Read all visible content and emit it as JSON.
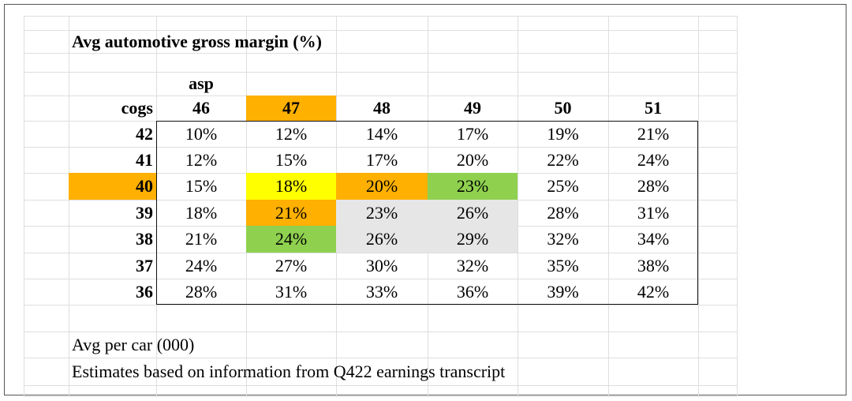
{
  "sheet": {
    "title": "Avg automotive gross margin (%)",
    "asp_label": "asp",
    "cogs_label": "cogs",
    "asp_headers": [
      "46",
      "47",
      "48",
      "49",
      "50",
      "51"
    ],
    "cogs_headers": [
      "42",
      "41",
      "40",
      "39",
      "38",
      "37",
      "36"
    ],
    "rows": [
      [
        "10%",
        "12%",
        "14%",
        "17%",
        "19%",
        "21%"
      ],
      [
        "12%",
        "15%",
        "17%",
        "20%",
        "22%",
        "24%"
      ],
      [
        "15%",
        "18%",
        "20%",
        "23%",
        "25%",
        "28%"
      ],
      [
        "18%",
        "21%",
        "23%",
        "26%",
        "28%",
        "31%"
      ],
      [
        "21%",
        "24%",
        "26%",
        "29%",
        "32%",
        "34%"
      ],
      [
        "24%",
        "27%",
        "30%",
        "32%",
        "35%",
        "38%"
      ],
      [
        "28%",
        "31%",
        "33%",
        "36%",
        "39%",
        "42%"
      ]
    ],
    "notes": [
      "Avg per car (000)",
      "Estimates based on information from Q422 earnings transcript"
    ],
    "highlights": {
      "asp_header": {
        "col": 1,
        "color": "#ffb000"
      },
      "cogs_header": {
        "row": 2,
        "color": "#ffb000"
      },
      "cells": [
        {
          "row": 2,
          "col": 1,
          "color": "#ffff00"
        },
        {
          "row": 2,
          "col": 2,
          "color": "#ffb000"
        },
        {
          "row": 2,
          "col": 3,
          "color": "#8fd14f"
        },
        {
          "row": 3,
          "col": 1,
          "color": "#ffb000"
        },
        {
          "row": 3,
          "col": 2,
          "color": "#e6e6e6"
        },
        {
          "row": 3,
          "col": 3,
          "color": "#e6e6e6"
        },
        {
          "row": 4,
          "col": 1,
          "color": "#8fd14f"
        },
        {
          "row": 4,
          "col": 2,
          "color": "#e6e6e6"
        },
        {
          "row": 4,
          "col": 3,
          "color": "#e6e6e6"
        }
      ]
    }
  }
}
